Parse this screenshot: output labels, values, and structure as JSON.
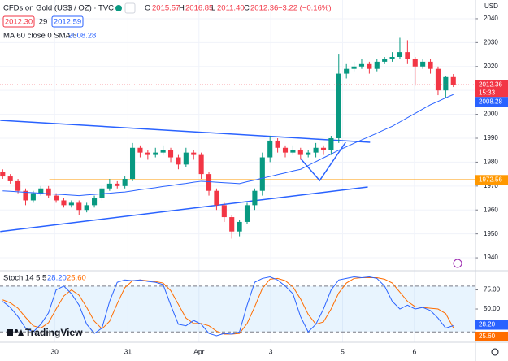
{
  "header": {
    "symbol": "CFDs on Gold (US$ / OZ) · TVC",
    "open_key": "O",
    "open": "2015.57",
    "high_key": "H",
    "high": "2016.85",
    "low_key": "L",
    "low": "2011.40",
    "close_key": "C",
    "close": "2012.36",
    "change": "−3.22 (−0.16%)",
    "bid": "2012.30",
    "spread": "29",
    "ask": "2012.59",
    "currency": "USD",
    "countdown": "15:33",
    "logo": "TradingView"
  },
  "chart_data": {
    "type": "candlestick",
    "up_color": "#089981",
    "down_color": "#f23645",
    "xlim": [
      -0.35,
      61.9
    ],
    "ylim": [
      1935.6,
      2047.8
    ],
    "yticks": [
      1940,
      1950,
      1960,
      1970,
      1980,
      1990,
      2000,
      2010,
      2020,
      2030,
      2040
    ],
    "xticks": [
      {
        "value": 6.8,
        "label": "30"
      },
      {
        "value": 16.4,
        "label": "31"
      },
      {
        "value": 25.7,
        "label": "Apr"
      },
      {
        "value": 35.1,
        "label": "3"
      },
      {
        "value": 44.5,
        "label": "5"
      },
      {
        "value": 53.9,
        "label": "6"
      }
    ],
    "candles": {
      "open": [
        1976,
        1974,
        1972,
        1968,
        1964,
        1967,
        1969,
        1966,
        1964,
        1962,
        1963,
        1960,
        1962,
        1965,
        1969,
        1971,
        1970,
        1973,
        1986,
        1984,
        1983,
        1984,
        1985,
        1982,
        1979,
        1984,
        1983,
        1975,
        1968,
        1962,
        1957,
        1951,
        1955,
        1962,
        1968,
        1982,
        1989,
        1986,
        1984,
        1985,
        1983,
        1984,
        1986,
        1985,
        1990,
        2017,
        2019,
        2020,
        2021,
        2019,
        2022,
        2023,
        2024,
        2026,
        2023,
        2020,
        2022,
        2019,
        2010,
        2015.57
      ],
      "high": [
        1977,
        1975,
        1973,
        1969,
        1968,
        1970,
        1970,
        1967,
        1965,
        1964,
        1964,
        1963,
        1966,
        1970,
        1973,
        1972,
        1974,
        1988,
        1987,
        1985,
        1986,
        1987,
        1986,
        1983,
        1986,
        1985,
        1984,
        1976,
        1969,
        1963,
        1958,
        1956,
        1963,
        1969,
        1984,
        1991,
        1990,
        1987,
        1987,
        1986,
        1985,
        1988,
        1987,
        1991,
        2025,
        2021,
        2022,
        2023,
        2022,
        2023,
        2024,
        2026,
        2032,
        2031,
        2024,
        2023,
        2023,
        2020,
        2016,
        2016.85
      ],
      "low": [
        1973,
        1971,
        1967,
        1962,
        1963,
        1966,
        1965,
        1963,
        1961,
        1961,
        1958,
        1959,
        1961,
        1964,
        1968,
        1969,
        1969,
        1972,
        1982,
        1981,
        1982,
        1983,
        1980,
        1977,
        1978,
        1981,
        1973,
        1966,
        1960,
        1955,
        1948,
        1949,
        1954,
        1960,
        1966,
        1980,
        1984,
        1982,
        1983,
        1981,
        1982,
        1982,
        1983,
        1983,
        1988,
        2015,
        2018,
        2019,
        2017,
        2018,
        2021,
        2022,
        2023,
        2021,
        2012,
        2019,
        2017,
        2008,
        2007,
        2011.4
      ],
      "close": [
        1974,
        1972,
        1968,
        1964,
        1967,
        1969,
        1966,
        1964,
        1962,
        1963,
        1960,
        1962,
        1965,
        1969,
        1971,
        1970,
        1973,
        1986,
        1984,
        1983,
        1984,
        1985,
        1982,
        1979,
        1984,
        1983,
        1975,
        1968,
        1962,
        1957,
        1951,
        1955,
        1962,
        1968,
        1982,
        1989,
        1986,
        1984,
        1985,
        1983,
        1984,
        1986,
        1985,
        1990,
        2017,
        2019,
        2020,
        2021,
        2019,
        2022,
        2023,
        2024,
        2026,
        2023,
        2020,
        2022,
        2019,
        2010,
        2015.57,
        2012.36
      ]
    },
    "ma": {
      "name": "MA 60 close 0 SMA 5",
      "color": "#2962ff",
      "values": [
        1968,
        1967.8,
        1967.6,
        1967.4,
        1967.2,
        1967,
        1966.8,
        1966.6,
        1966.4,
        1966.2,
        1966,
        1966.3,
        1966.5,
        1966.8,
        1967,
        1967.3,
        1967.5,
        1968,
        1968.5,
        1968.9,
        1969.3,
        1969.8,
        1970.2,
        1970.7,
        1971.1,
        1971.6,
        1972,
        1971.8,
        1971.6,
        1971.4,
        1971.2,
        1971,
        1971.8,
        1972.5,
        1973.3,
        1974,
        1974.8,
        1975.5,
        1976.3,
        1977,
        1978.6,
        1980.2,
        1981.8,
        1983.4,
        1985,
        1986.4,
        1987.9,
        1989.3,
        1990.7,
        1992.1,
        1993.6,
        1995,
        1996.8,
        1998.6,
        2000.4,
        2002.2,
        2004,
        2005.4,
        2006.9,
        2008.28
      ]
    },
    "hline": {
      "value": 1972.56,
      "start": 6.1,
      "color": "#ff9800"
    },
    "drawings": [
      {
        "color": "#2962ff",
        "points": [
          [
            -0.32,
            1997.5
          ],
          [
            48.1,
            1988.3
          ]
        ]
      },
      {
        "color": "#2962ff",
        "points": [
          [
            -0.32,
            1951
          ],
          [
            47.8,
            1969.6
          ]
        ]
      },
      {
        "color": "#2962ff",
        "points": [
          [
            39,
            1981.5
          ],
          [
            41.5,
            1972.3
          ],
          [
            44.9,
            1988.3
          ]
        ]
      }
    ],
    "stoch": {
      "name": "Stoch 14 5 5",
      "ylim": [
        9.6,
        97.9
      ],
      "band": [
        20,
        80
      ],
      "yticks": [
        {
          "value": 75,
          "label": "75.00"
        },
        {
          "value": 50,
          "label": "50.00"
        },
        {
          "value": 25,
          "label": "25.00"
        }
      ],
      "k": {
        "color": "#2962ff",
        "values": [
          60,
          52,
          40,
          25,
          20,
          30,
          45,
          75,
          80,
          70,
          55,
          30,
          18,
          25,
          60,
          85,
          88,
          87,
          88,
          86,
          85,
          82,
          55,
          30,
          28,
          35,
          30,
          18,
          15,
          18,
          17,
          20,
          55,
          85,
          90,
          92,
          88,
          80,
          70,
          40,
          20,
          30,
          50,
          75,
          88,
          90,
          92,
          91,
          92,
          90,
          80,
          60,
          50,
          55,
          50,
          52,
          48,
          38,
          25,
          28.2
        ],
        "value_label": "28.20"
      },
      "d": {
        "color": "#ff6d00",
        "values": [
          62,
          58,
          51,
          39,
          28,
          25,
          32,
          50,
          67,
          75,
          68,
          52,
          34,
          24,
          34,
          57,
          78,
          87,
          88,
          87,
          86,
          84,
          74,
          56,
          38,
          31,
          31,
          28,
          21,
          17,
          17,
          18,
          31,
          53,
          77,
          89,
          90,
          87,
          79,
          63,
          43,
          30,
          33,
          50,
          71,
          84,
          90,
          91,
          91,
          91,
          89,
          84,
          72,
          60,
          53,
          52,
          51,
          50,
          44,
          25.6
        ],
        "value_label": "25.60"
      }
    }
  }
}
